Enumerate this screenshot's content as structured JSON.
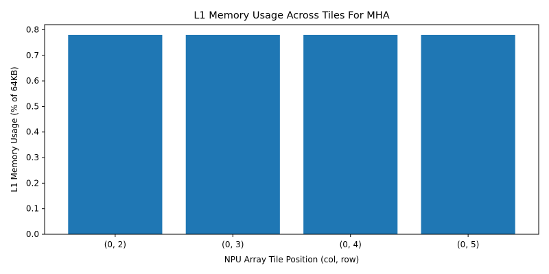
{
  "chart_data": {
    "type": "bar",
    "title": "L1 Memory Usage Across Tiles For MHA",
    "xlabel": "NPU Array Tile Position (col, row)",
    "ylabel": "L1 Memory Usage (% of 64KB)",
    "categories": [
      "(0, 2)",
      "(0, 3)",
      "(0, 4)",
      "(0, 5)"
    ],
    "values": [
      0.78,
      0.78,
      0.78,
      0.78
    ],
    "ylim": [
      0,
      0.82
    ],
    "yticks": [
      0.0,
      0.1,
      0.2,
      0.3,
      0.4,
      0.5,
      0.6,
      0.7,
      0.8
    ],
    "ytick_labels": [
      "0.0",
      "0.1",
      "0.2",
      "0.3",
      "0.4",
      "0.5",
      "0.6",
      "0.7",
      "0.8"
    ],
    "grid": false,
    "legend": false,
    "bar_color": "#1f77b4"
  }
}
